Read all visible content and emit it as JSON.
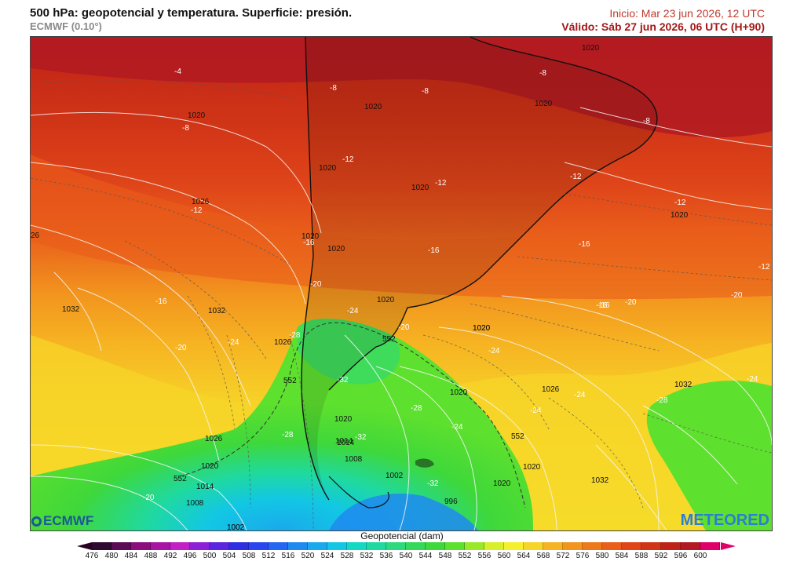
{
  "header": {
    "title": "500 hPa: geopotencial y temperatura. Superficie: presión.",
    "model": "ECMWF (0.10°)",
    "init": "Inicio: Mar 23 jun 2026, 12 UTC",
    "valid": "Válido: Sáb 27 jun 2026, 06 UTC (H+90)"
  },
  "colors": {
    "title": "#111111",
    "model": "#8a8a8a",
    "init": "#c0392b",
    "valid": "#a31818"
  },
  "map": {
    "pressure_labels": [
      "1020",
      "1020",
      "1020",
      "1020",
      "1020",
      "1020",
      "1020",
      "1020",
      "1020",
      "1026",
      "26",
      "1020",
      "1020",
      "1032",
      "1032",
      "1026",
      "1020",
      "1020",
      "1020",
      "1014",
      "1026",
      "1032",
      "1020",
      "1014",
      "1008",
      "1002",
      "1020",
      "1014",
      "1008",
      "1002",
      "1026",
      "1020",
      "1032",
      "1002",
      "996"
    ],
    "temperature_labels": [
      "-4",
      "-8",
      "-8",
      "-8",
      "-8",
      "-8",
      "-12",
      "-12",
      "-12",
      "-12",
      "-12",
      "-16",
      "-16",
      "-16",
      "-16",
      "-16",
      "-20",
      "-20",
      "-20",
      "-24",
      "-24",
      "-24",
      "-24",
      "-20",
      "-24",
      "-24",
      "-28",
      "-28",
      "-28",
      "-28",
      "-32",
      "-32",
      "-32",
      "-24",
      "-20",
      "-20",
      "-16",
      "-12"
    ],
    "isohypse_labels": [
      "552",
      "552",
      "552",
      "552"
    ]
  },
  "colorbar": {
    "title": "Geopotencial (dam)",
    "ticks": [
      476,
      480,
      484,
      488,
      492,
      496,
      500,
      504,
      508,
      512,
      516,
      520,
      524,
      528,
      532,
      536,
      540,
      544,
      548,
      552,
      556,
      560,
      564,
      568,
      572,
      576,
      580,
      584,
      588,
      592,
      596,
      600
    ],
    "colors": [
      "#2e0930",
      "#5b0a55",
      "#8a0f7c",
      "#a814a4",
      "#c21fc4",
      "#8d1fd8",
      "#5a26e0",
      "#2f2ee2",
      "#2a46f0",
      "#2366f2",
      "#1e8af0",
      "#1aa9ec",
      "#12c7e4",
      "#13d8c2",
      "#1fd9a0",
      "#2cd97c",
      "#34d85a",
      "#3fd83a",
      "#5ee02e",
      "#9ae82a",
      "#d8ef2c",
      "#f4f02e",
      "#f7d428",
      "#f6b322",
      "#f2941e",
      "#ee781c",
      "#e95e1b",
      "#df4519",
      "#d13517",
      "#bf2317",
      "#b11a22",
      "#e0006a"
    ]
  },
  "logos": {
    "left": "ECMWF",
    "right": "METEORED"
  }
}
